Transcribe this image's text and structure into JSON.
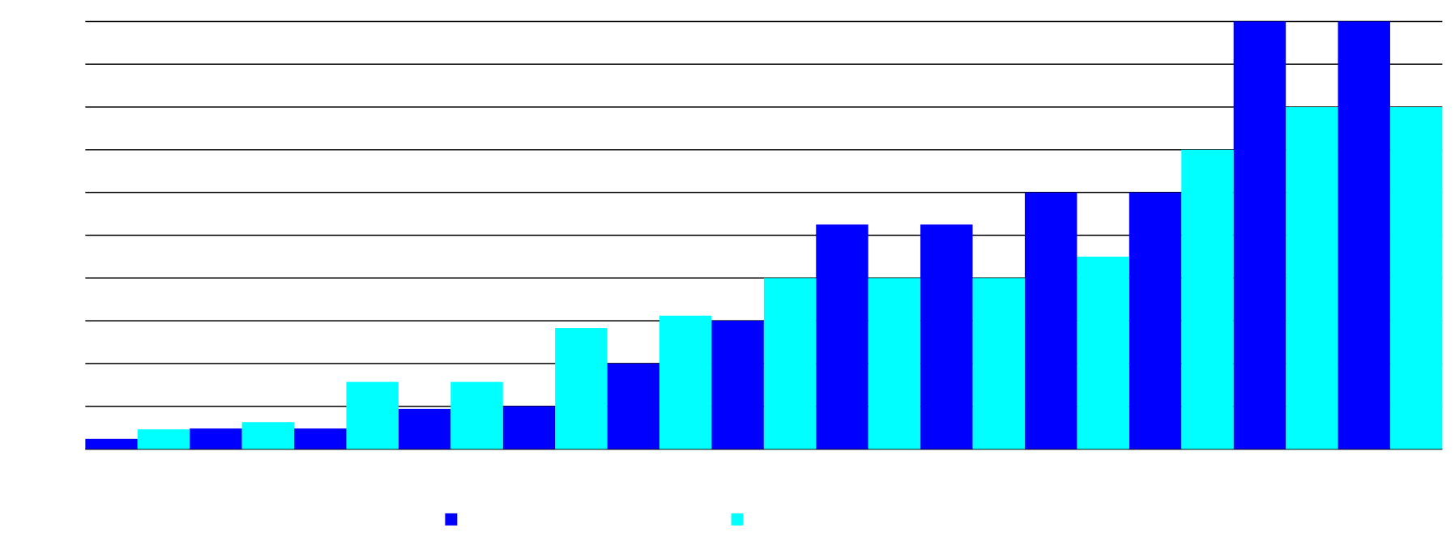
{
  "chart_data": {
    "type": "bar",
    "categories": [
      null,
      null,
      null,
      null,
      null,
      null,
      null,
      null,
      null,
      null,
      null,
      null,
      null
    ],
    "series": [
      {
        "color": "#0000ff",
        "values": [
          0.24,
          0.48,
          0.48,
          0.94,
          1.0,
          2.0,
          3.0,
          5.25,
          5.25,
          6.0,
          6.0,
          10,
          10
        ]
      },
      {
        "color": "#00ffff",
        "values": [
          0.46,
          0.63,
          1.57,
          1.57,
          2.83,
          3.12,
          4.0,
          4.0,
          4.0,
          4.5,
          7.0,
          8.0,
          8.0
        ]
      }
    ],
    "ylim": [
      0,
      10
    ],
    "yticks": [
      0,
      1,
      2,
      3,
      4,
      5,
      6,
      7,
      8,
      9,
      10
    ],
    "grid": true
  }
}
